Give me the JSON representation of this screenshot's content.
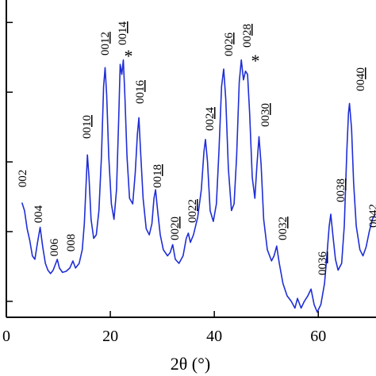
{
  "chart_data": {
    "type": "line",
    "log_y": true,
    "x_label": "2θ (°)",
    "xlim": [
      0,
      71.1
    ],
    "xticks": [
      0,
      20,
      40,
      60
    ],
    "ylim": [
      5.9,
      210000
    ],
    "yticks": [
      10,
      100,
      1000,
      10000,
      100000
    ],
    "series": [
      {
        "color": "#1f2ed6",
        "x": [
          3.0,
          3.5,
          4.0,
          4.5,
          5.0,
          5.5,
          6.0,
          6.5,
          7.0,
          7.5,
          8.0,
          8.5,
          9.0,
          9.5,
          9.8,
          10.2,
          10.8,
          11.5,
          12.2,
          12.8,
          13.3,
          14.0,
          14.6,
          15.0,
          15.4,
          15.6,
          15.9,
          16.3,
          16.8,
          17.3,
          17.8,
          18.3,
          18.7,
          19.0,
          19.3,
          19.7,
          20.2,
          20.7,
          21.2,
          21.6,
          21.9,
          22.2,
          22.5,
          22.8,
          23.2,
          23.7,
          24.3,
          24.8,
          25.2,
          25.5,
          25.8,
          26.3,
          26.9,
          27.5,
          28.0,
          28.4,
          28.7,
          29.1,
          29.6,
          30.2,
          31.0,
          31.5,
          32.0,
          32.5,
          33.2,
          34.0,
          34.6,
          35.0,
          35.4,
          36.0,
          36.8,
          37.5,
          38.0,
          38.3,
          38.7,
          39.2,
          39.8,
          40.4,
          40.9,
          41.4,
          41.8,
          42.2,
          42.7,
          43.3,
          43.8,
          44.3,
          44.8,
          45.2,
          45.6,
          46.0,
          46.4,
          46.8,
          47.3,
          47.8,
          48.2,
          48.6,
          49.0,
          49.5,
          50.2,
          51.0,
          51.5,
          52.0,
          52.5,
          53.2,
          54.0,
          54.8,
          55.5,
          56.0,
          56.7,
          57.3,
          58.0,
          58.6,
          59.2,
          59.8,
          60.5,
          61.2,
          61.7,
          62.1,
          62.4,
          62.8,
          63.3,
          63.8,
          64.5,
          65.0,
          65.5,
          65.8,
          66.0,
          66.4,
          66.8,
          67.3,
          68.0,
          68.6,
          69.2,
          69.8,
          70.4,
          71.0
        ],
        "values": [
          260,
          200,
          110,
          75,
          45,
          40,
          70,
          115,
          60,
          35,
          28,
          25,
          28,
          35,
          40,
          30,
          26,
          27,
          30,
          38,
          30,
          35,
          55,
          130,
          600,
          1260,
          600,
          150,
          80,
          90,
          200,
          1200,
          12000,
          22500,
          9000,
          1200,
          250,
          150,
          400,
          4000,
          25000,
          18000,
          29000,
          9000,
          1200,
          300,
          250,
          700,
          2500,
          4300,
          1500,
          300,
          110,
          90,
          130,
          300,
          400,
          200,
          90,
          55,
          45,
          50,
          65,
          40,
          35,
          45,
          80,
          95,
          70,
          90,
          160,
          400,
          1400,
          2100,
          1000,
          200,
          140,
          250,
          1500,
          12000,
          21500,
          8000,
          800,
          200,
          250,
          1200,
          14000,
          29000,
          15000,
          20000,
          18000,
          5000,
          600,
          300,
          900,
          2300,
          900,
          150,
          55,
          38,
          45,
          62,
          35,
          18,
          12,
          10,
          8,
          11,
          8,
          10,
          12,
          15,
          9,
          7,
          9,
          18,
          50,
          120,
          178,
          90,
          40,
          28,
          35,
          120,
          1500,
          5000,
          6900,
          3000,
          500,
          120,
          55,
          45,
          60,
          100,
          150,
          180
        ]
      }
    ],
    "peak_labels": [
      {
        "base": "002"
      },
      {
        "base": "004"
      },
      {
        "base": "006"
      },
      {
        "base": "008"
      },
      {
        "base": "00",
        "underlined": "10"
      },
      {
        "base": "00",
        "underlined": "12"
      },
      {
        "base": "00",
        "underlined": "14"
      },
      {
        "base": "00",
        "underlined": "16"
      },
      {
        "base": "00",
        "underlined": "18"
      },
      {
        "base": "00",
        "underlined": "20"
      },
      {
        "base": "00",
        "underlined": "22"
      },
      {
        "base": "00",
        "underlined": "24"
      },
      {
        "base": "00",
        "underlined": "26"
      },
      {
        "base": "00",
        "underlined": "28"
      },
      {
        "base": "00",
        "underlined": "30"
      },
      {
        "base": "00",
        "underlined": "32"
      },
      {
        "base": "00",
        "underlined": "36"
      },
      {
        "base": "00",
        "underlined": "38"
      },
      {
        "base": "00",
        "underlined": "40"
      },
      {
        "base": "00",
        "underlined": "42"
      }
    ],
    "annotations": [
      "*",
      "*"
    ]
  }
}
